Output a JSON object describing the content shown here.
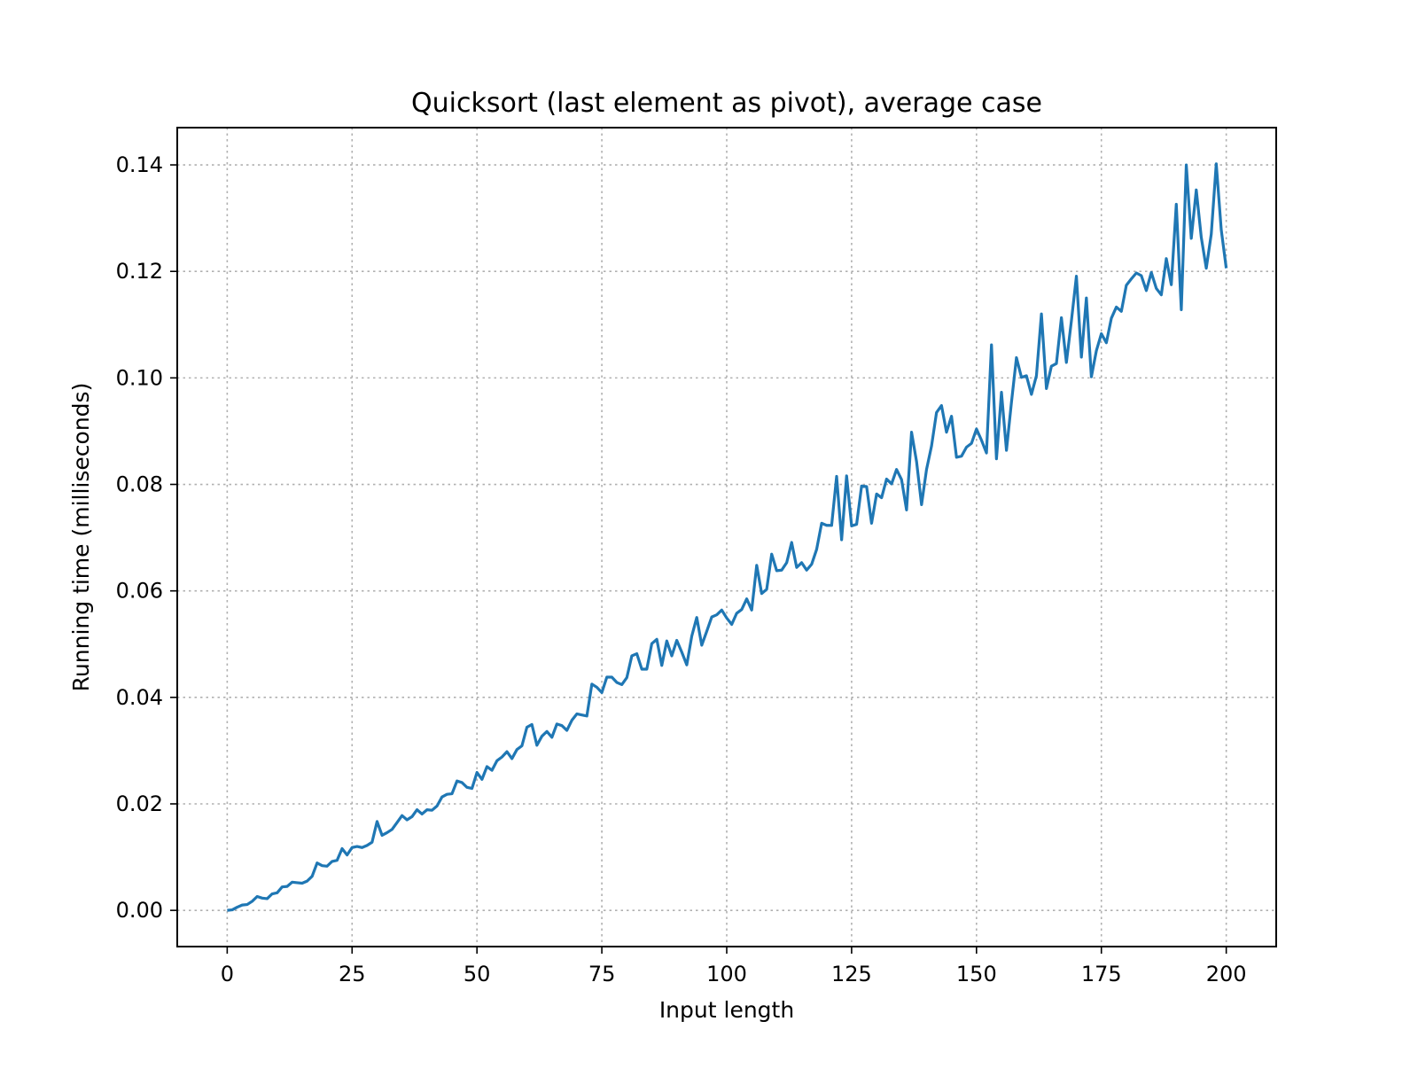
{
  "chart_data": {
    "type": "line",
    "title": "Quicksort (last element as pivot), average case",
    "xlabel": "Input length",
    "ylabel": "Running time (milliseconds)",
    "xlim": [
      -10,
      210
    ],
    "ylim": [
      -0.0068,
      0.147
    ],
    "grid": true,
    "legend": "none",
    "xticks": [
      0,
      25,
      50,
      75,
      100,
      125,
      150,
      175,
      200
    ],
    "xtick_labels": [
      "0",
      "25",
      "50",
      "75",
      "100",
      "125",
      "150",
      "175",
      "200"
    ],
    "yticks": [
      0.0,
      0.02,
      0.04,
      0.06,
      0.08,
      0.1,
      0.12,
      0.14
    ],
    "ytick_labels": [
      "0.00",
      "0.02",
      "0.04",
      "0.06",
      "0.08",
      "0.10",
      "0.12",
      "0.14"
    ],
    "series": [
      {
        "color": "#1f77b4",
        "x": [
          0,
          1,
          2,
          3,
          4,
          5,
          6,
          7,
          8,
          9,
          10,
          11,
          12,
          13,
          14,
          15,
          16,
          17,
          18,
          19,
          20,
          21,
          22,
          23,
          24,
          25,
          26,
          27,
          28,
          29,
          30,
          31,
          32,
          33,
          34,
          35,
          36,
          37,
          38,
          39,
          40,
          41,
          42,
          43,
          44,
          45,
          46,
          47,
          48,
          49,
          50,
          51,
          52,
          53,
          54,
          55,
          56,
          57,
          58,
          59,
          60,
          61,
          62,
          63,
          64,
          65,
          66,
          67,
          68,
          69,
          70,
          71,
          72,
          73,
          74,
          75,
          76,
          77,
          78,
          79,
          80,
          81,
          82,
          83,
          84,
          85,
          86,
          87,
          88,
          89,
          90,
          91,
          92,
          93,
          94,
          95,
          96,
          97,
          98,
          99,
          100,
          101,
          102,
          103,
          104,
          105,
          106,
          107,
          108,
          109,
          110,
          111,
          112,
          113,
          114,
          115,
          116,
          117,
          118,
          119,
          120,
          121,
          122,
          123,
          124,
          125,
          126,
          127,
          128,
          129,
          130,
          131,
          132,
          133,
          134,
          135,
          136,
          137,
          138,
          139,
          140,
          141,
          142,
          143,
          144,
          145,
          146,
          147,
          148,
          149,
          150,
          151,
          152,
          153,
          154,
          155,
          156,
          157,
          158,
          159,
          160,
          161,
          162,
          163,
          164,
          165,
          166,
          167,
          168,
          169,
          170,
          171,
          172,
          173,
          174,
          175,
          176,
          177,
          178,
          179,
          180,
          181,
          182,
          183,
          184,
          185,
          186,
          187,
          188,
          189,
          190,
          191,
          192,
          193,
          194,
          195,
          196,
          197,
          198,
          199,
          200
        ],
        "y": [
          0.0,
          0.0001,
          0.0006,
          0.001,
          0.0011,
          0.0017,
          0.0026,
          0.0023,
          0.0022,
          0.0031,
          0.0033,
          0.0044,
          0.0045,
          0.0053,
          0.0052,
          0.0051,
          0.0055,
          0.0064,
          0.0089,
          0.0084,
          0.0083,
          0.0092,
          0.0094,
          0.0116,
          0.0104,
          0.0118,
          0.012,
          0.0118,
          0.0122,
          0.0128,
          0.0167,
          0.0141,
          0.0146,
          0.0152,
          0.0165,
          0.0178,
          0.017,
          0.0176,
          0.0189,
          0.0181,
          0.0189,
          0.0188,
          0.0196,
          0.0213,
          0.0218,
          0.0219,
          0.0243,
          0.024,
          0.0231,
          0.0229,
          0.0259,
          0.0246,
          0.027,
          0.0263,
          0.0281,
          0.0288,
          0.0298,
          0.0285,
          0.0302,
          0.0309,
          0.0344,
          0.0349,
          0.031,
          0.0327,
          0.0336,
          0.0325,
          0.035,
          0.0347,
          0.0338,
          0.0357,
          0.0369,
          0.0367,
          0.0365,
          0.0425,
          0.0419,
          0.0409,
          0.0438,
          0.0438,
          0.0428,
          0.0424,
          0.0437,
          0.0478,
          0.0482,
          0.0453,
          0.0453,
          0.0501,
          0.0509,
          0.046,
          0.0506,
          0.0478,
          0.0507,
          0.0485,
          0.0461,
          0.0515,
          0.055,
          0.0498,
          0.0524,
          0.0551,
          0.0555,
          0.0564,
          0.0549,
          0.0537,
          0.0558,
          0.0565,
          0.0585,
          0.0564,
          0.0648,
          0.0595,
          0.0603,
          0.0669,
          0.0638,
          0.0639,
          0.0653,
          0.0691,
          0.0644,
          0.0653,
          0.0639,
          0.065,
          0.0678,
          0.0727,
          0.0723,
          0.0723,
          0.0815,
          0.0696,
          0.0816,
          0.0722,
          0.0725,
          0.0797,
          0.0796,
          0.0727,
          0.0782,
          0.0775,
          0.081,
          0.0801,
          0.0828,
          0.0809,
          0.0752,
          0.0898,
          0.0843,
          0.0762,
          0.0828,
          0.0872,
          0.0935,
          0.0948,
          0.0898,
          0.0928,
          0.0851,
          0.0853,
          0.087,
          0.0877,
          0.0904,
          0.0883,
          0.0859,
          0.1062,
          0.0848,
          0.0973,
          0.0864,
          0.0954,
          0.1038,
          0.1001,
          0.1004,
          0.0969,
          0.1004,
          0.112,
          0.098,
          0.1022,
          0.1027,
          0.1113,
          0.1029,
          0.1107,
          0.1191,
          0.1039,
          0.115,
          0.1002,
          0.1051,
          0.1083,
          0.1066,
          0.1112,
          0.1133,
          0.1125,
          0.1174,
          0.1186,
          0.1197,
          0.1192,
          0.1164,
          0.1198,
          0.1168,
          0.1156,
          0.1224,
          0.1175,
          0.1326,
          0.1128,
          0.14,
          0.1262,
          0.1353,
          0.1264,
          0.1206,
          0.127,
          0.1402,
          0.1278,
          0.1206
        ]
      }
    ]
  }
}
